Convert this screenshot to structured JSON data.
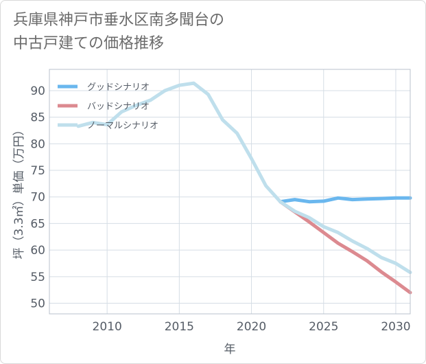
{
  "title_line1": "兵庫県神戸市垂水区南多聞台の",
  "title_line2": "中古戸建ての価格推移",
  "chart_data": {
    "type": "line",
    "title": "兵庫県神戸市垂水区南多聞台の中古戸建ての価格推移",
    "xlabel": "年",
    "ylabel": "坪（3.3㎡）単価（万円）",
    "xlim": [
      2006,
      2031
    ],
    "ylim": [
      48,
      94
    ],
    "xticks": [
      2010,
      2015,
      2020,
      2025,
      2030
    ],
    "yticks": [
      50,
      55,
      60,
      65,
      70,
      75,
      80,
      85,
      90
    ],
    "grid": true,
    "legend_position": "top-left",
    "series": [
      {
        "name": "グッドシナリオ",
        "color": "#6ab7ee",
        "x": [
          2022,
          2023,
          2024,
          2025,
          2026,
          2027,
          2028,
          2029,
          2030,
          2031
        ],
        "y": [
          69.1,
          69.5,
          69.1,
          69.2,
          69.8,
          69.5,
          69.6,
          69.7,
          69.8,
          69.8
        ]
      },
      {
        "name": "バッドシナリオ",
        "color": "#dc8a90",
        "x": [
          2022,
          2023,
          2024,
          2025,
          2026,
          2027,
          2028,
          2029,
          2030,
          2031
        ],
        "y": [
          69.1,
          67.2,
          65.3,
          63.3,
          61.3,
          59.7,
          58.0,
          55.9,
          54.0,
          52.0
        ]
      },
      {
        "name": "ノーマルシナリオ",
        "color": "#bfdfec",
        "x": [
          2008,
          2009,
          2010,
          2011,
          2012,
          2013,
          2014,
          2015,
          2016,
          2017,
          2018,
          2019,
          2020,
          2021,
          2022,
          2023,
          2024,
          2025,
          2026,
          2027,
          2028,
          2029,
          2030,
          2031
        ],
        "y": [
          83.3,
          84.0,
          83.6,
          86.0,
          87.2,
          88.2,
          90.0,
          91.0,
          91.4,
          89.3,
          84.5,
          82.0,
          77.2,
          72.1,
          69.1,
          67.3,
          66.1,
          64.4,
          63.3,
          61.7,
          60.3,
          58.6,
          57.5,
          55.8
        ]
      }
    ]
  }
}
